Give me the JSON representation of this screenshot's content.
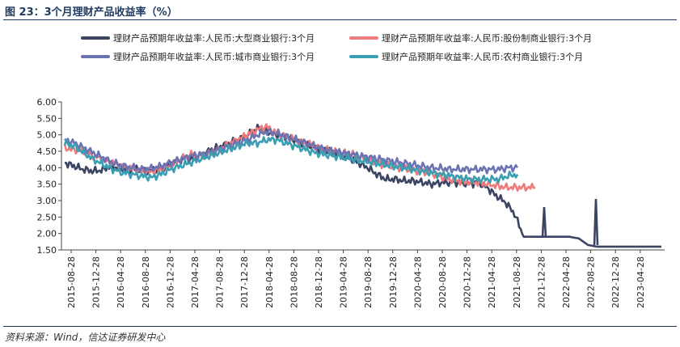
{
  "figure": {
    "title": "图 23：3个月理财产品收益率（%）",
    "source": "资料来源：Wind，信达证券研发中心"
  },
  "chart_data": {
    "type": "line",
    "x_tick_labels": [
      "2015-08-28",
      "2015-12-28",
      "2016-04-28",
      "2016-08-28",
      "2016-12-28",
      "2017-04-28",
      "2017-08-28",
      "2017-12-28",
      "2018-04-28",
      "2018-08-28",
      "2018-12-28",
      "2019-04-28",
      "2019-08-28",
      "2019-12-28",
      "2020-04-28",
      "2020-08-28",
      "2020-12-28",
      "2021-04-28",
      "2021-08-28",
      "2021-12-28",
      "2022-04-28",
      "2022-08-28",
      "2022-12-28",
      "2023-04-28"
    ],
    "ylim": [
      1.5,
      6.0
    ],
    "y_ticks": [
      "1.50",
      "2.00",
      "2.50",
      "3.00",
      "3.50",
      "4.00",
      "4.50",
      "5.00",
      "5.50",
      "6.00"
    ],
    "legend_position": "top",
    "series": [
      {
        "name": "理财产品预期年收益率:人民币:大型商业银行:3个月",
        "color": "#3b4563",
        "values": [
          4.15,
          4.05,
          3.95,
          3.9,
          3.92,
          4.05,
          3.98,
          3.95,
          3.95,
          3.92,
          3.92,
          4.05,
          4.15,
          4.3,
          4.25,
          4.4,
          4.55,
          4.65,
          4.75,
          4.85,
          5.0,
          5.2,
          5.1,
          5.0,
          4.95,
          4.85,
          4.75,
          4.65,
          4.55,
          4.5,
          4.4,
          4.3,
          4.15,
          4.0,
          3.8,
          3.65,
          3.65,
          3.6,
          3.6,
          3.55,
          3.5,
          3.55,
          3.55,
          3.55,
          3.5,
          3.55,
          3.4,
          3.15,
          2.95,
          2.6,
          1.9,
          1.9,
          1.9,
          1.9,
          1.9,
          1.9,
          1.85,
          1.65,
          1.6,
          1.6,
          1.6,
          1.6,
          1.6,
          1.6,
          1.6,
          1.6
        ]
      },
      {
        "name": "理财产品预期年收益率:人民币:股份制商业银行:3个月",
        "color": "#ef7b7b",
        "values": [
          4.6,
          4.55,
          4.5,
          4.35,
          4.25,
          4.15,
          4.05,
          3.95,
          3.9,
          3.88,
          3.95,
          4.05,
          4.25,
          4.4,
          4.35,
          4.4,
          4.55,
          4.7,
          4.85,
          5.0,
          5.15,
          5.25,
          5.05,
          4.95,
          4.85,
          4.75,
          4.65,
          4.55,
          4.5,
          4.45,
          4.4,
          4.3,
          4.2,
          4.1,
          4.05,
          4.0,
          3.95,
          3.9,
          3.85,
          3.75,
          3.65,
          3.6,
          3.55,
          3.55,
          3.5,
          3.45,
          3.4,
          3.4,
          3.4,
          3.4
        ]
      },
      {
        "name": "理财产品预期年收益率:人民币:城市商业银行:3个月",
        "color": "#6c73b3",
        "values": [
          4.85,
          4.75,
          4.6,
          4.45,
          4.3,
          4.15,
          4.05,
          4.0,
          3.95,
          3.98,
          4.05,
          4.15,
          4.25,
          4.35,
          4.4,
          4.45,
          4.55,
          4.65,
          4.75,
          4.85,
          5.0,
          5.1,
          5.05,
          4.95,
          4.85,
          4.75,
          4.65,
          4.55,
          4.5,
          4.45,
          4.4,
          4.35,
          4.3,
          4.25,
          4.2,
          4.15,
          4.1,
          4.05,
          4.0,
          3.98,
          3.95,
          3.95,
          3.95,
          3.95,
          3.95,
          3.95,
          4.0,
          4.0
        ]
      },
      {
        "name": "理财产品预期年收益率:人民币:农村商业银行:3个月",
        "color": "#3a9fb3",
        "values": [
          4.75,
          4.65,
          4.45,
          4.25,
          4.1,
          3.95,
          3.85,
          3.8,
          3.75,
          3.7,
          3.8,
          3.95,
          4.05,
          4.15,
          4.25,
          4.35,
          4.45,
          4.55,
          4.65,
          4.75,
          4.75,
          4.85,
          4.85,
          4.75,
          4.65,
          4.55,
          4.45,
          4.4,
          4.35,
          4.3,
          4.25,
          4.2,
          4.15,
          4.1,
          4.05,
          4.0,
          3.95,
          3.9,
          3.85,
          3.8,
          3.75,
          3.7,
          3.65,
          3.65,
          3.65,
          3.65,
          3.75,
          3.8
        ]
      }
    ]
  }
}
